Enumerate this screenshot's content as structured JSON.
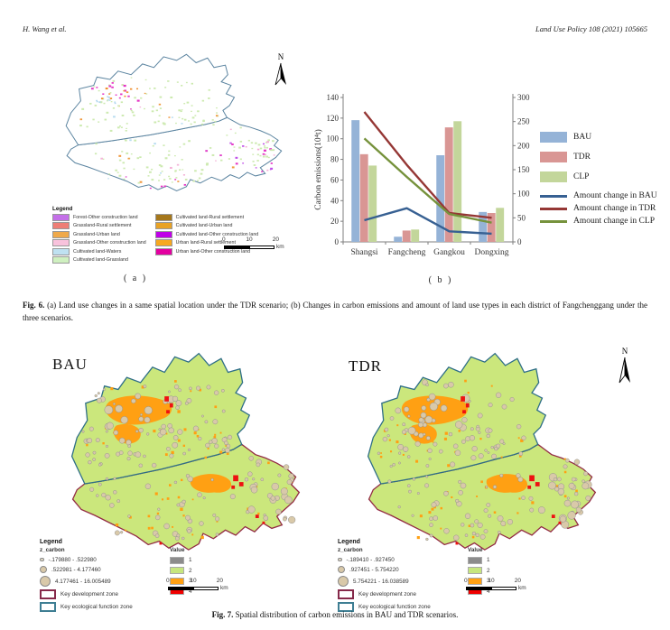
{
  "header": {
    "author": "H. Wang et al.",
    "journal": "Land Use Policy 108 (2021) 105665"
  },
  "fig6": {
    "north_label": "N",
    "label_a": "( a )",
    "label_b": "( b )",
    "caption_bold": "Fig. 6.",
    "caption_text": "(a) Land use changes in a same spatial location under the TDR scenario; (b) Changes in carbon emissions and amount of land use types in each district of Fangchenggang under the three scenarios.",
    "map_legend": {
      "title": "Legend",
      "left_items": [
        {
          "label": "Forest-Other construction land",
          "color": "#c470e8"
        },
        {
          "label": "Grassland-Rural settlement",
          "color": "#ee7e76"
        },
        {
          "label": "Grassland-Urban land",
          "color": "#efa94a"
        },
        {
          "label": "Grassland-Other construction land",
          "color": "#f8c2dc"
        },
        {
          "label": "Cultivated land-Waters",
          "color": "#bfe1f1"
        },
        {
          "label": "Cultivated land-Grassland",
          "color": "#cff0c0"
        }
      ],
      "right_items": [
        {
          "label": "Cultivated land-Rural settlement",
          "color": "#a5771b"
        },
        {
          "label": "Cultivated land-Urban land",
          "color": "#e8a225"
        },
        {
          "label": "Cultivated land-Other construction land",
          "color": "#bf00e8"
        },
        {
          "label": "Urban land-Rural settlement",
          "color": "#f7a81f"
        },
        {
          "label": "Urban land-Other construction land",
          "color": "#e300a0"
        }
      ],
      "scalebar": {
        "t0": "0",
        "t10": "10",
        "t20": "20",
        "unit": "km"
      }
    }
  },
  "chart_data": {
    "type": "bar+line",
    "categories": [
      "Shangsi",
      "Fangcheng",
      "Gangkou",
      "Dongxing"
    ],
    "ylabel_left": "Carbon emissions(10⁴t)",
    "ylim_left": [
      0,
      140
    ],
    "ystep_left": 20,
    "ylim_right": [
      0,
      300
    ],
    "ystep_right": 50,
    "grid": false,
    "legend_position": "right",
    "bar_series": [
      {
        "name": "BAU",
        "color": "#95b3d7",
        "values": [
          118,
          5,
          84,
          29
        ]
      },
      {
        "name": "TDR",
        "color": "#d99694",
        "values": [
          85,
          11,
          111,
          28
        ]
      },
      {
        "name": "CLP",
        "color": "#c3d69b",
        "values": [
          74,
          12,
          117,
          33
        ]
      }
    ],
    "line_series": [
      {
        "name": "Amount change in BAU",
        "color": "#376092",
        "axis": "right",
        "values": [
          45,
          70,
          22,
          17
        ]
      },
      {
        "name": "Amount change  in TDR",
        "color": "#953735",
        "axis": "right",
        "values": [
          270,
          160,
          60,
          50
        ]
      },
      {
        "name": "Amount change in CLP",
        "color": "#76923c",
        "axis": "right",
        "values": [
          215,
          135,
          58,
          40
        ]
      }
    ]
  },
  "fig7": {
    "north_label": "N",
    "caption_bold": "Fig. 7.",
    "caption_text": "Spatial distribution of carbon emissions in BAU and TDR scenarios.",
    "map_colors": {
      "fill": "#cbe77c",
      "orange": "#ffa013",
      "red": "#ee1111",
      "tan": "#d9c9a9",
      "north_border": "#2e6e87",
      "south_border": "#932b44"
    },
    "panels": [
      {
        "title": "BAU",
        "legend": {
          "title": "Legend",
          "field": "z_carbon",
          "classes": [
            "-.179880 - .522980",
            ".522981 - 4.177460",
            "4.177461 - 16.005489"
          ],
          "zones": [
            {
              "label": "Key development zone",
              "color": "#86294a"
            },
            {
              "label": "Key ecological function zone",
              "color": "#3e7e93"
            }
          ],
          "value_title": "Value",
          "values": [
            {
              "label": "1",
              "color": "#8c8c8c"
            },
            {
              "label": "2",
              "color": "#c6e67e"
            },
            {
              "label": "3",
              "color": "#ffa013"
            },
            {
              "label": "4",
              "color": "#f00000"
            }
          ]
        },
        "scalebar": {
          "t0": "0",
          "t10": "10",
          "t20": "20",
          "unit": "km"
        }
      },
      {
        "title": "TDR",
        "legend": {
          "title": "Legend",
          "field": "z_carbon",
          "classes": [
            "-.189410 - .927450",
            ".927451 - 5.754220",
            "5.754221 - 16.038589"
          ],
          "zones": [
            {
              "label": "Key development zone",
              "color": "#86294a"
            },
            {
              "label": "Key ecological function zone",
              "color": "#3e7e93"
            }
          ],
          "value_title": "Value",
          "values": [
            {
              "label": "1",
              "color": "#8c8c8c"
            },
            {
              "label": "2",
              "color": "#c6e67e"
            },
            {
              "label": "3",
              "color": "#ffa013"
            },
            {
              "label": "4",
              "color": "#f00000"
            }
          ]
        },
        "scalebar": {
          "t0": "0",
          "t10": "10",
          "t20": "20",
          "unit": "km"
        }
      }
    ]
  }
}
